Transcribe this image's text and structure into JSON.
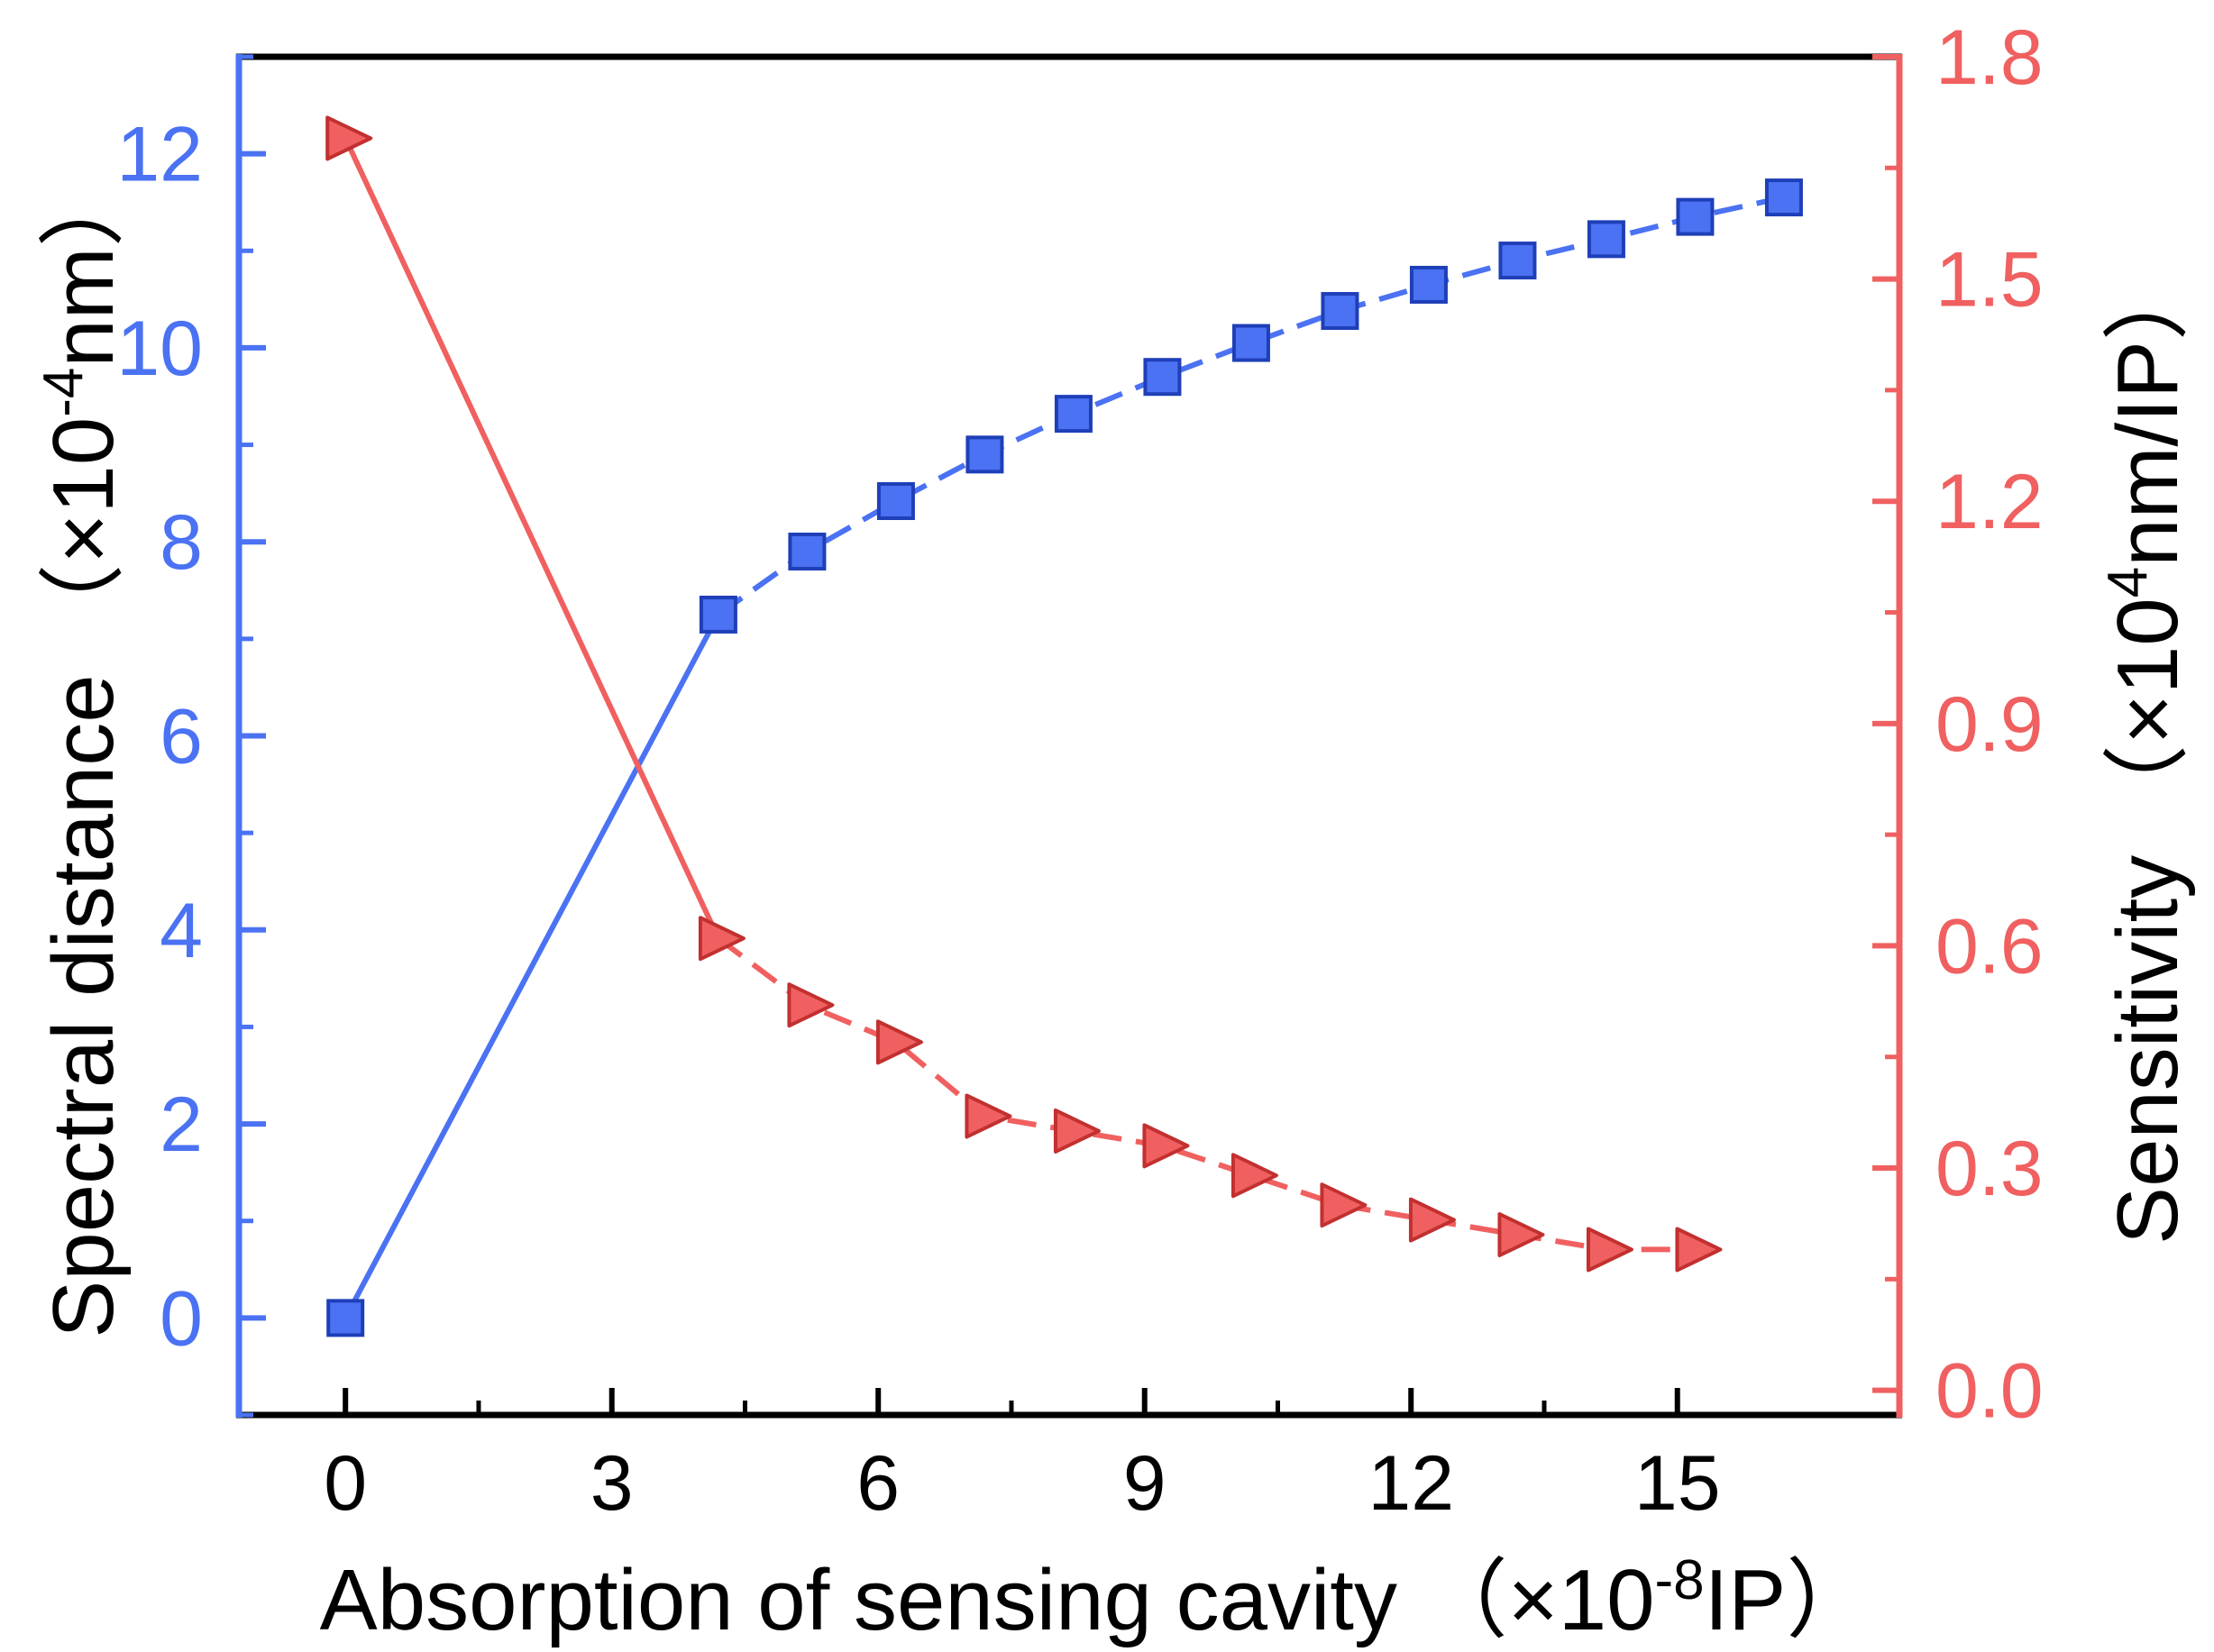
{
  "chart_data": {
    "type": "line",
    "title": "",
    "xlabel": "Absorption of sensing cavity（×10⁻⁸IP）",
    "xlabel_parts": {
      "main": "Absorption of sensing cavity （×10",
      "sup": "-8",
      "tail": "IP）"
    },
    "ylabel_left": "Spectral distance（×10⁻⁴nm）",
    "ylabel_left_parts": {
      "main": "Spectral distance （×10",
      "sup": "-4",
      "tail": "nm）"
    },
    "ylabel_right": "Sensitivity（×10⁴nm/IP）",
    "ylabel_right_parts": {
      "main": "Sensitivity （×10",
      "sup": "4",
      "tail": "nm/IP）"
    },
    "xlim": [
      -1.2,
      17.5
    ],
    "ylim_left": [
      -1,
      13
    ],
    "ylim_right": [
      -0.0333,
      1.8
    ],
    "x_ticks": [
      0,
      3,
      6,
      9,
      12,
      15
    ],
    "x_tick_labels": [
      "0",
      "3",
      "6",
      "9",
      "12",
      "15"
    ],
    "y_left_ticks": [
      0,
      2,
      4,
      6,
      8,
      10,
      12
    ],
    "y_left_tick_labels": [
      "0",
      "2",
      "4",
      "6",
      "8",
      "10",
      "12"
    ],
    "y_right_ticks": [
      0.0,
      0.3,
      0.6,
      0.9,
      1.2,
      1.5,
      1.8
    ],
    "y_right_tick_labels": [
      "0.0",
      "0.3",
      "0.6",
      "0.9",
      "1.2",
      "1.5",
      "1.8"
    ],
    "series": [
      {
        "name": "Spectral distance",
        "axis": "left",
        "color": "#4a72f2",
        "marker": "square",
        "x": [
          0,
          4.2,
          5.2,
          6.2,
          7.2,
          8.2,
          9.2,
          10.2,
          11.2,
          12.2,
          13.2,
          14.2,
          15.2,
          16.2
        ],
        "values": [
          0.0,
          7.25,
          7.9,
          8.42,
          8.9,
          9.32,
          9.7,
          10.05,
          10.38,
          10.65,
          10.9,
          11.12,
          11.35,
          11.55
        ],
        "segments": [
          {
            "style": "solid",
            "from": 0,
            "to": 1
          },
          {
            "style": "dashed",
            "from": 1,
            "to": 13
          }
        ]
      },
      {
        "name": "Sensitivity",
        "axis": "right",
        "color": "#f06060",
        "marker": "triangle-right",
        "x": [
          0,
          4.2,
          5.2,
          6.2,
          7.2,
          8.2,
          9.2,
          10.2,
          11.2,
          12.2,
          13.2,
          14.2,
          15.2
        ],
        "values": [
          1.69,
          0.61,
          0.52,
          0.47,
          0.37,
          0.35,
          0.33,
          0.29,
          0.25,
          0.23,
          0.21,
          0.19,
          0.19
        ],
        "segments": [
          {
            "style": "solid",
            "from": 0,
            "to": 1
          },
          {
            "style": "dashed",
            "from": 1,
            "to": 12
          }
        ]
      }
    ],
    "colors": {
      "left_axis": "#4a72f2",
      "right_axis": "#f06060",
      "frame": "#000000"
    },
    "grid": false,
    "legend": "none"
  }
}
